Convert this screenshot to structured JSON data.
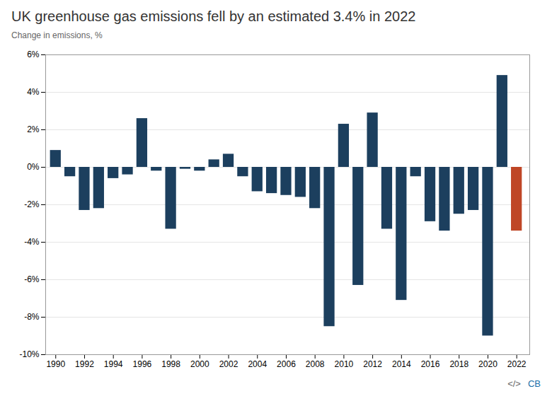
{
  "chart_data": {
    "type": "bar",
    "title": "UK greenhouse gas emissions fell by an estimated 3.4% in 2022",
    "subtitle": "Change in emissions, %",
    "x": [
      1990,
      1991,
      1992,
      1993,
      1994,
      1995,
      1996,
      1997,
      1998,
      1999,
      2000,
      2001,
      2002,
      2003,
      2004,
      2005,
      2006,
      2007,
      2008,
      2009,
      2010,
      2011,
      2012,
      2013,
      2014,
      2015,
      2016,
      2017,
      2018,
      2019,
      2020,
      2021,
      2022
    ],
    "values": [
      0.9,
      -0.5,
      -2.3,
      -2.2,
      -0.6,
      -0.4,
      2.6,
      -0.2,
      -3.3,
      -0.1,
      -0.2,
      0.4,
      0.7,
      -0.5,
      -1.3,
      -1.4,
      -1.5,
      -1.6,
      -2.2,
      -8.5,
      2.3,
      -6.3,
      2.9,
      -3.3,
      -7.1,
      -0.5,
      -2.9,
      -3.4,
      -2.5,
      -2.3,
      -9.0,
      4.9,
      -3.4
    ],
    "colors": [
      "#1c3f5e",
      "#1c3f5e",
      "#1c3f5e",
      "#1c3f5e",
      "#1c3f5e",
      "#1c3f5e",
      "#1c3f5e",
      "#1c3f5e",
      "#1c3f5e",
      "#1c3f5e",
      "#1c3f5e",
      "#1c3f5e",
      "#1c3f5e",
      "#1c3f5e",
      "#1c3f5e",
      "#1c3f5e",
      "#1c3f5e",
      "#1c3f5e",
      "#1c3f5e",
      "#1c3f5e",
      "#1c3f5e",
      "#1c3f5e",
      "#1c3f5e",
      "#1c3f5e",
      "#1c3f5e",
      "#1c3f5e",
      "#1c3f5e",
      "#1c3f5e",
      "#1c3f5e",
      "#1c3f5e",
      "#1c3f5e",
      "#1c3f5e",
      "#bf4626"
    ],
    "xlim": [
      1989.3,
      2022.9
    ],
    "xticks": [
      1990,
      1992,
      1994,
      1996,
      1998,
      2000,
      2002,
      2004,
      2006,
      2008,
      2010,
      2012,
      2014,
      2016,
      2018,
      2020,
      2022
    ],
    "ylim": [
      -10,
      6
    ],
    "yticks": [
      {
        "value": -10,
        "label": "-10%"
      },
      {
        "value": -8,
        "label": "-8%"
      },
      {
        "value": -6,
        "label": "-6%"
      },
      {
        "value": -4,
        "label": "-4%"
      },
      {
        "value": -2,
        "label": "-2%"
      },
      {
        "value": 0,
        "label": "0%"
      },
      {
        "value": 2,
        "label": "2%"
      },
      {
        "value": 4,
        "label": "4%"
      },
      {
        "value": 6,
        "label": "6%"
      }
    ],
    "grid": true,
    "annotations": [
      {
        "text": "</>",
        "color": "#666666"
      },
      {
        "text": "CB",
        "color": "#1a6fa8"
      }
    ]
  }
}
